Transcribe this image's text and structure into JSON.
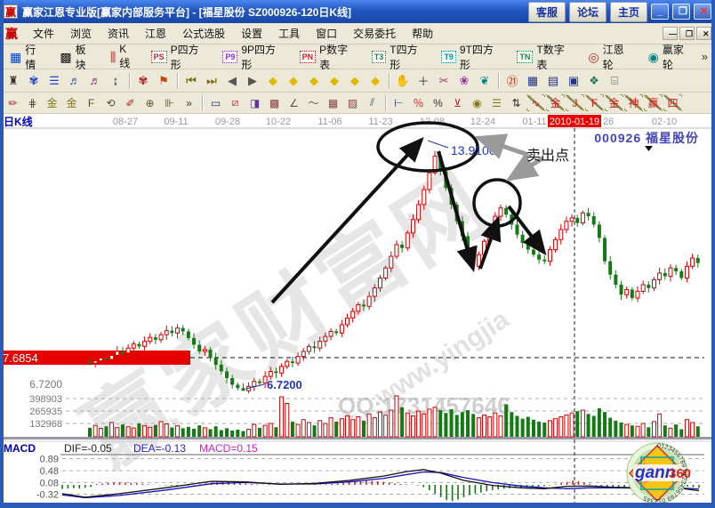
{
  "window": {
    "title": "赢家江恩专业版[赢家内部服务平台] - [福星股份  SZ000926-120日K线]",
    "service_buttons": [
      "客服",
      "论坛",
      "主页"
    ],
    "win_controls": {
      "min": "_",
      "max": "❐",
      "close": "✕"
    }
  },
  "menu": {
    "logo": "赢",
    "items": [
      "文件",
      "浏览",
      "资讯",
      "江恩",
      "公式选股",
      "设置",
      "工具",
      "窗口",
      "交易委托",
      "帮助"
    ],
    "mdi": [
      "—",
      "❐",
      "✕"
    ]
  },
  "toolbar1": {
    "overflow": "»",
    "items": [
      {
        "kind": "ico",
        "g": "▦",
        "c": "#1144cc",
        "label": "行情",
        "name": "quotes"
      },
      {
        "kind": "ico",
        "g": "▩",
        "c": "#11885entity5",
        "label": "板块",
        "name": "sectors"
      },
      {
        "kind": "ico",
        "g": "⫼",
        "c": "#cc2222",
        "label": "K线",
        "name": "kline"
      },
      {
        "kind": "badge",
        "g": "PS",
        "c": "#cc2222",
        "label": "P四方形",
        "name": "p-square"
      },
      {
        "kind": "badge",
        "g": "P9",
        "c": "#8833cc",
        "label": "9P四方形",
        "name": "9p-square"
      },
      {
        "kind": "badge",
        "g": "PN",
        "c": "#cc2222",
        "label": "P数字表",
        "name": "p-table"
      },
      {
        "kind": "badge",
        "g": "T3",
        "c": "#118833",
        "label": "T四方形",
        "name": "t-square"
      },
      {
        "kind": "badge",
        "g": "T9",
        "c": "#008899",
        "label": "9T四方形",
        "name": "9t-square"
      },
      {
        "kind": "badge",
        "g": "TN",
        "c": "#118833",
        "label": "T数字表",
        "name": "t-table"
      },
      {
        "kind": "ico",
        "g": "◎",
        "c": "#bb2222",
        "label": "江恩轮",
        "name": "gann-wheel"
      },
      {
        "kind": "ico",
        "g": "◉",
        "c": "#008888",
        "label": "赢家轮",
        "name": "winner-wheel"
      }
    ]
  },
  "toolbar2": {
    "items": [
      {
        "g": "♜",
        "c": "#333333",
        "name": "kline-type",
        "sep": false
      },
      {
        "g": "✾",
        "c": "#2244cc",
        "name": "pattern",
        "sep": false
      },
      {
        "g": "☰",
        "c": "#2244cc",
        "name": "list",
        "sep": false
      },
      {
        "g": "♬",
        "c": "#2244cc",
        "name": "chart-3",
        "sep": false
      },
      {
        "g": "♬",
        "c": "#882266",
        "name": "chart-9",
        "sep": false
      },
      {
        "g": "↨",
        "c": "#333333",
        "name": "scale",
        "sep": true
      },
      {
        "g": "✾",
        "c": "#aa2222",
        "name": "pattern-red",
        "sep": false
      },
      {
        "g": "⚑",
        "c": "#cc4400",
        "name": "flag",
        "sep": true
      },
      {
        "g": "⏮",
        "c": "#776600",
        "name": "first-page",
        "sep": false
      },
      {
        "g": "⏭",
        "c": "#776600",
        "name": "last-page",
        "sep": false
      },
      {
        "g": "◀",
        "c": "#555555",
        "name": "prev",
        "sep": false
      },
      {
        "g": "▶",
        "c": "#555555",
        "name": "next",
        "sep": false
      },
      {
        "g": "◆",
        "c": "#e0b800",
        "name": "zoom-left",
        "sep": false
      },
      {
        "g": "◆",
        "c": "#e0b800",
        "name": "zoom-right",
        "sep": false
      },
      {
        "g": "◆",
        "c": "#e0b800",
        "name": "zoom-h",
        "sep": false
      },
      {
        "g": "◆",
        "c": "#e0b800",
        "name": "zoom-in",
        "sep": false
      },
      {
        "g": "◆",
        "c": "#e0b800",
        "name": "zoom-v",
        "sep": false
      },
      {
        "g": "◆",
        "c": "#e0b800",
        "name": "zoom-all",
        "sep": true
      },
      {
        "g": "✋",
        "c": "#bb8855",
        "name": "pan-hand",
        "sep": false
      },
      {
        "g": "＋",
        "c": "#333333",
        "name": "crosshair",
        "sep": false
      },
      {
        "g": "✂",
        "c": "#aa3377",
        "name": "cut",
        "sep": false
      },
      {
        "g": "❀",
        "c": "#993399",
        "name": "gann-flower",
        "sep": false
      },
      {
        "g": "❦",
        "c": "#008888",
        "name": "gann-brain",
        "sep": true
      },
      {
        "g": "㉑",
        "c": "#cc2200",
        "name": "calendar",
        "sep": false
      },
      {
        "g": "▦",
        "c": "#223388",
        "name": "calculator",
        "sep": false
      },
      {
        "g": "▤",
        "c": "#223388",
        "name": "notes",
        "sep": false
      },
      {
        "g": "▣",
        "c": "#223388",
        "name": "save",
        "sep": false
      },
      {
        "g": "❖",
        "c": "#227755",
        "name": "network",
        "sep": false
      },
      {
        "g": "⌸",
        "c": "#555555",
        "name": "remote",
        "sep": false
      }
    ]
  },
  "toolbar3": {
    "items": [
      {
        "g": "✏",
        "c": "#aa2222",
        "name": "pen",
        "diag": false,
        "sep": false
      },
      {
        "g": "⋕",
        "c": "#555533",
        "name": "grid-tool",
        "diag": false,
        "sep": false
      },
      {
        "g": "金",
        "c": "#887722",
        "name": "gold-grid",
        "diag": false,
        "sep": false
      },
      {
        "g": "金",
        "c": "#887722",
        "name": "gold-grid-2",
        "diag": false,
        "sep": false
      },
      {
        "g": "F",
        "c": "#555533",
        "name": "f-grid",
        "diag": false,
        "sep": false
      },
      {
        "g": "⟲",
        "c": "#555533",
        "name": "spiral",
        "diag": false,
        "sep": false
      },
      {
        "g": "✐",
        "c": "#aa2222",
        "name": "pen-2",
        "diag": false,
        "sep": false
      },
      {
        "g": "⊕",
        "c": "#555533",
        "name": "circle-grid",
        "diag": false,
        "sep": false
      },
      {
        "g": "⊪",
        "c": "#555533",
        "name": "tick-grid",
        "diag": false,
        "sep": false
      },
      {
        "g": "»",
        "c": "#333333",
        "name": "more-tools",
        "diag": false,
        "sep": true
      },
      {
        "g": "▭",
        "c": "#333366",
        "name": "box-tool",
        "diag": false,
        "sep": false
      },
      {
        "g": "⧄",
        "c": "#cc2222",
        "name": "fan-lines",
        "diag": false,
        "sep": false
      },
      {
        "g": "◨",
        "c": "#663399",
        "name": "fan-box",
        "diag": false,
        "sep": false
      },
      {
        "g": "▩",
        "c": "#884444",
        "name": "net-box",
        "diag": false,
        "sep": false
      },
      {
        "g": "∠",
        "c": "#555555",
        "name": "angle-tool",
        "diag": false,
        "sep": false
      },
      {
        "g": "〜",
        "c": "#555555",
        "name": "wave-tool",
        "diag": false,
        "sep": false
      },
      {
        "g": "▦",
        "c": "#884444",
        "name": "grid-box",
        "diag": false,
        "sep": false
      },
      {
        "g": "▨",
        "c": "#884444",
        "name": "grid-box-2",
        "diag": false,
        "sep": false
      },
      {
        "g": "⫽",
        "c": "#555555",
        "name": "parallel-lines",
        "diag": false,
        "sep": true
      },
      {
        "g": "⊢",
        "c": "#223366",
        "name": "ruler",
        "diag": false,
        "sep": false
      },
      {
        "g": "％",
        "c": "#cc2222",
        "name": "percent-box",
        "diag": false,
        "sep": false
      },
      {
        "g": "%",
        "c": "#333333",
        "name": "percent",
        "diag": false,
        "sep": false
      },
      {
        "g": "⊻",
        "c": "#cc2222",
        "name": "percent-line",
        "diag": false,
        "sep": false
      },
      {
        "g": "◉",
        "c": "#887722",
        "name": "gold-circle",
        "diag": false,
        "sep": false
      },
      {
        "g": "☰",
        "c": "#887722",
        "name": "gold-lines",
        "diag": false,
        "sep": false
      },
      {
        "g": "⇅",
        "c": "#333333",
        "name": "updown-tool",
        "diag": false,
        "sep": false
      },
      {
        "g": "∿",
        "c": "#cc2222",
        "name": "wave-gold",
        "diag": true,
        "sep": false
      },
      {
        "g": "金",
        "c": "#cc2222",
        "name": "gold-angle",
        "diag": true,
        "sep": false
      },
      {
        "g": "J",
        "c": "#cc2222",
        "name": "j-angle",
        "diag": true,
        "sep": false
      },
      {
        "g": "F",
        "c": "#cc2222",
        "name": "f-angle",
        "diag": true,
        "sep": false
      },
      {
        "g": "金",
        "c": "#cc2222",
        "name": "gold-angle-2",
        "diag": true,
        "sep": false
      },
      {
        "g": "神",
        "c": "#cc2222",
        "name": "shen-angle",
        "diag": true,
        "sep": false
      },
      {
        "g": "赢",
        "c": "#cc2222",
        "name": "win-angle",
        "diag": true,
        "sep": false
      },
      {
        "g": "四",
        "c": "#cc2222",
        "name": "four-angle",
        "diag": true,
        "sep": false
      }
    ]
  },
  "chart_data": {
    "type": "candlestick",
    "panel_label": "日K线",
    "symbol": "000926",
    "stock_name": "福星股份",
    "x_dates": [
      "08-27",
      "09-11",
      "09-28",
      "10-22",
      "11-06",
      "11-23",
      "12-08",
      "12-24",
      "01-11"
    ],
    "cursor_date": "2010-01-19",
    "tick_after_cursor": "26",
    "last_tick": "02-10",
    "price_marker": "7.6854",
    "low_axis_label": "6.7200",
    "low_annotation": "6.7200",
    "peak_annotation": "13.9100",
    "sell_point_label": "卖出点",
    "volume_axis": [
      "398903",
      "265935",
      "132968"
    ],
    "watermark": {
      "line1": "赢家财富网",
      "line2": "www.yingjia",
      "qq": "QQ:1731457646"
    },
    "colors": {
      "up": "#d40000",
      "down": "#157a15",
      "cursor": "#222222",
      "grid": "#999999",
      "marker_bg": "#e60000",
      "dif": "#111111",
      "dea": "#1111bb",
      "macd_hist_pos": "#cc2222",
      "macd_hist_neg": "#117711",
      "annotation_blue": "#2233bb",
      "label_purple": "#4444bb"
    },
    "candles": {
      "first_open": 7.6,
      "closes": [
        7.55,
        7.62,
        7.7,
        7.66,
        7.78,
        7.9,
        7.85,
        8.0,
        8.12,
        8.05,
        8.2,
        8.32,
        8.25,
        8.4,
        8.52,
        8.45,
        8.6,
        8.5,
        8.3,
        8.1,
        7.9,
        7.95,
        7.7,
        7.5,
        7.3,
        7.1,
        6.9,
        6.8,
        6.72,
        6.85,
        7.0,
        6.95,
        7.15,
        7.3,
        7.25,
        7.45,
        7.6,
        7.55,
        7.75,
        7.9,
        8.05,
        8.0,
        8.2,
        8.35,
        8.5,
        8.45,
        8.7,
        8.9,
        9.1,
        9.3,
        9.25,
        9.55,
        9.8,
        10.1,
        10.4,
        10.75,
        11.1,
        11.0,
        11.45,
        11.85,
        12.3,
        12.75,
        13.25,
        13.75,
        13.3,
        12.8,
        12.3,
        11.8,
        11.35,
        10.95,
        10.45,
        10.8,
        11.2,
        11.6,
        11.95,
        12.2,
        12.0,
        11.7,
        11.4,
        11.15,
        10.95,
        10.8,
        10.65,
        10.6,
        10.95,
        11.25,
        11.55,
        11.8,
        11.9,
        11.75,
        12.05,
        11.95,
        11.7,
        11.3,
        10.6,
        10.2,
        9.9,
        9.6,
        9.75,
        9.5,
        9.7,
        9.9,
        9.8,
        10.05,
        10.25,
        10.15,
        10.4,
        10.3,
        10.1,
        10.45,
        10.7,
        10.55
      ],
      "peak_high": 13.91,
      "low_low": 6.72
    },
    "volumes": [
      95000,
      120000,
      88000,
      110000,
      150000,
      96000,
      130000,
      105000,
      92000,
      140000,
      118000,
      100000,
      125000,
      160000,
      135000,
      98000,
      115000,
      90000,
      105000,
      85000,
      120000,
      95000,
      80000,
      110000,
      70000,
      90000,
      65000,
      75000,
      60000,
      80000,
      130000,
      95000,
      120000,
      140000,
      100000,
      420000,
      350000,
      160000,
      130000,
      180000,
      150000,
      120000,
      170000,
      140000,
      200000,
      160000,
      190000,
      220000,
      180000,
      210000,
      170000,
      240000,
      200000,
      260000,
      230000,
      280000,
      430000,
      310000,
      250000,
      220000,
      270000,
      240000,
      290000,
      310000,
      280000,
      250000,
      290000,
      230000,
      260000,
      280000,
      240000,
      200000,
      230000,
      210000,
      250000,
      220000,
      340000,
      260000,
      220000,
      190000,
      210000,
      180000,
      160000,
      150000,
      170000,
      190000,
      210000,
      230000,
      250000,
      270000,
      280000,
      240000,
      220000,
      300000,
      260000,
      200000,
      170000,
      150000,
      130000,
      120000,
      110000,
      140000,
      100000,
      160000,
      240000,
      120000,
      90000,
      130000,
      80000,
      180000,
      150000,
      110000
    ],
    "macd": {
      "panel_label": "MACD",
      "dif_label": "DIF=-0.05",
      "dea_label": "DEA=-0.13",
      "macd_label": "MACD=0.15",
      "axis_labels": [
        "0.89",
        "0.48",
        "0.08",
        "-0.32"
      ],
      "axis_values": [
        0.89,
        0.48,
        0.08,
        -0.32
      ],
      "hist": [
        -0.14,
        -0.12,
        -0.11,
        -0.13,
        -0.1,
        -0.07,
        0.03,
        0.05,
        0.07,
        0.08,
        0.09,
        0.08,
        0.07,
        0.06,
        0.04,
        0.02,
        0.01,
        -0.01,
        -0.02,
        -0.03,
        -0.04,
        -0.03,
        -0.02,
        -0.01,
        0.02,
        0.05,
        0.08,
        0.11,
        0.13,
        0.12,
        0.1,
        0.07,
        0.05,
        0.03,
        0.02,
        0.01,
        0.02,
        0.01,
        0.02,
        0.01,
        0.01,
        0.02,
        0.01,
        0.01,
        0.02,
        0.01,
        0.02,
        0.03,
        0.05,
        0.08,
        0.1,
        0.12,
        0.13,
        0.14,
        0.13,
        0.12,
        0.1,
        0.08,
        0.05,
        0.03,
        0.02,
        0.01,
        -0.02,
        -0.08,
        -0.18,
        -0.3,
        -0.42,
        -0.52,
        -0.55,
        -0.5,
        -0.42,
        -0.35,
        -0.3,
        -0.26,
        -0.22,
        -0.18,
        -0.15,
        -0.13,
        -0.12,
        -0.1,
        -0.09,
        -0.08,
        -0.07,
        -0.06,
        -0.04,
        -0.02,
        0.02,
        0.06,
        0.1,
        0.15,
        0.12,
        0.08,
        0.04,
        -0.02,
        -0.05,
        -0.08,
        -0.1,
        -0.12,
        -0.11,
        -0.13,
        -0.12,
        -0.1,
        -0.09,
        -0.08,
        -0.07,
        -0.08,
        -0.09,
        -0.08,
        -0.07,
        -0.06,
        -0.08,
        -0.1
      ],
      "dif": [
        [
          0,
          -0.3
        ],
        [
          4,
          -0.42
        ],
        [
          10,
          -0.3
        ],
        [
          18,
          -0.1
        ],
        [
          26,
          0.12
        ],
        [
          32,
          0.1
        ],
        [
          38,
          0.02
        ],
        [
          44,
          0.05
        ],
        [
          50,
          0.15
        ],
        [
          56,
          0.3
        ],
        [
          60,
          0.45
        ],
        [
          63,
          0.52
        ],
        [
          66,
          0.4
        ],
        [
          70,
          0.15
        ],
        [
          75,
          -0.02
        ],
        [
          80,
          -0.1
        ],
        [
          84,
          -0.13
        ],
        [
          88,
          -0.05
        ],
        [
          92,
          -0.04
        ],
        [
          96,
          -0.08
        ],
        [
          100,
          -0.1
        ],
        [
          104,
          -0.07
        ],
        [
          108,
          -0.12
        ],
        [
          111,
          -0.2
        ]
      ],
      "dea": [
        [
          0,
          -0.34
        ],
        [
          4,
          -0.44
        ],
        [
          10,
          -0.36
        ],
        [
          18,
          -0.18
        ],
        [
          26,
          0.04
        ],
        [
          32,
          0.08
        ],
        [
          38,
          0.03
        ],
        [
          44,
          0.03
        ],
        [
          50,
          0.1
        ],
        [
          56,
          0.22
        ],
        [
          60,
          0.35
        ],
        [
          63,
          0.44
        ],
        [
          66,
          0.42
        ],
        [
          70,
          0.25
        ],
        [
          75,
          0.08
        ],
        [
          80,
          -0.04
        ],
        [
          84,
          -0.1
        ],
        [
          88,
          -0.13
        ],
        [
          92,
          -0.1
        ],
        [
          96,
          -0.1
        ],
        [
          100,
          -0.11
        ],
        [
          104,
          -0.1
        ],
        [
          108,
          -0.11
        ],
        [
          111,
          -0.14
        ]
      ]
    }
  },
  "logo": {
    "gann": "gann",
    "num": "360",
    "ring": "0123456789 0123456789 012345"
  }
}
